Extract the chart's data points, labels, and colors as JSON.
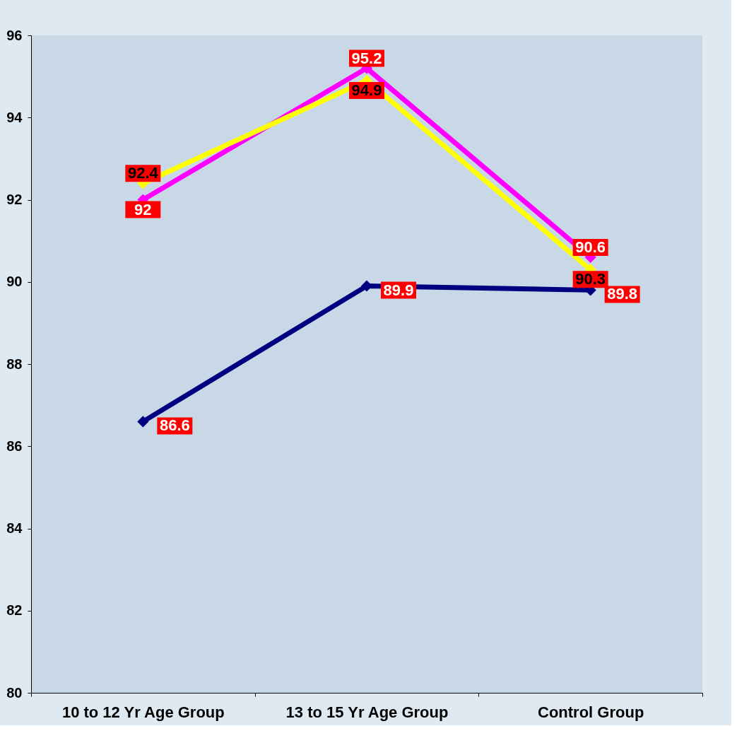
{
  "chart_data": {
    "type": "line",
    "categories": [
      "10 to 12 Yr Age Group",
      "13 to 15 Yr Age Group",
      "Control Group"
    ],
    "series": [
      {
        "color": "#ff00ff",
        "values": [
          92,
          95.2,
          90.6
        ]
      },
      {
        "color": "#ffff00",
        "values": [
          92.4,
          94.9,
          90.3
        ]
      },
      {
        "color": "#000080",
        "values": [
          86.6,
          89.9,
          89.8
        ]
      }
    ],
    "ylim": [
      80,
      96
    ],
    "yticks": [
      80,
      82,
      84,
      86,
      88,
      90,
      92,
      94,
      96
    ],
    "marker": "diamond",
    "line_style": "solid",
    "grid": false,
    "data_labels": true
  }
}
